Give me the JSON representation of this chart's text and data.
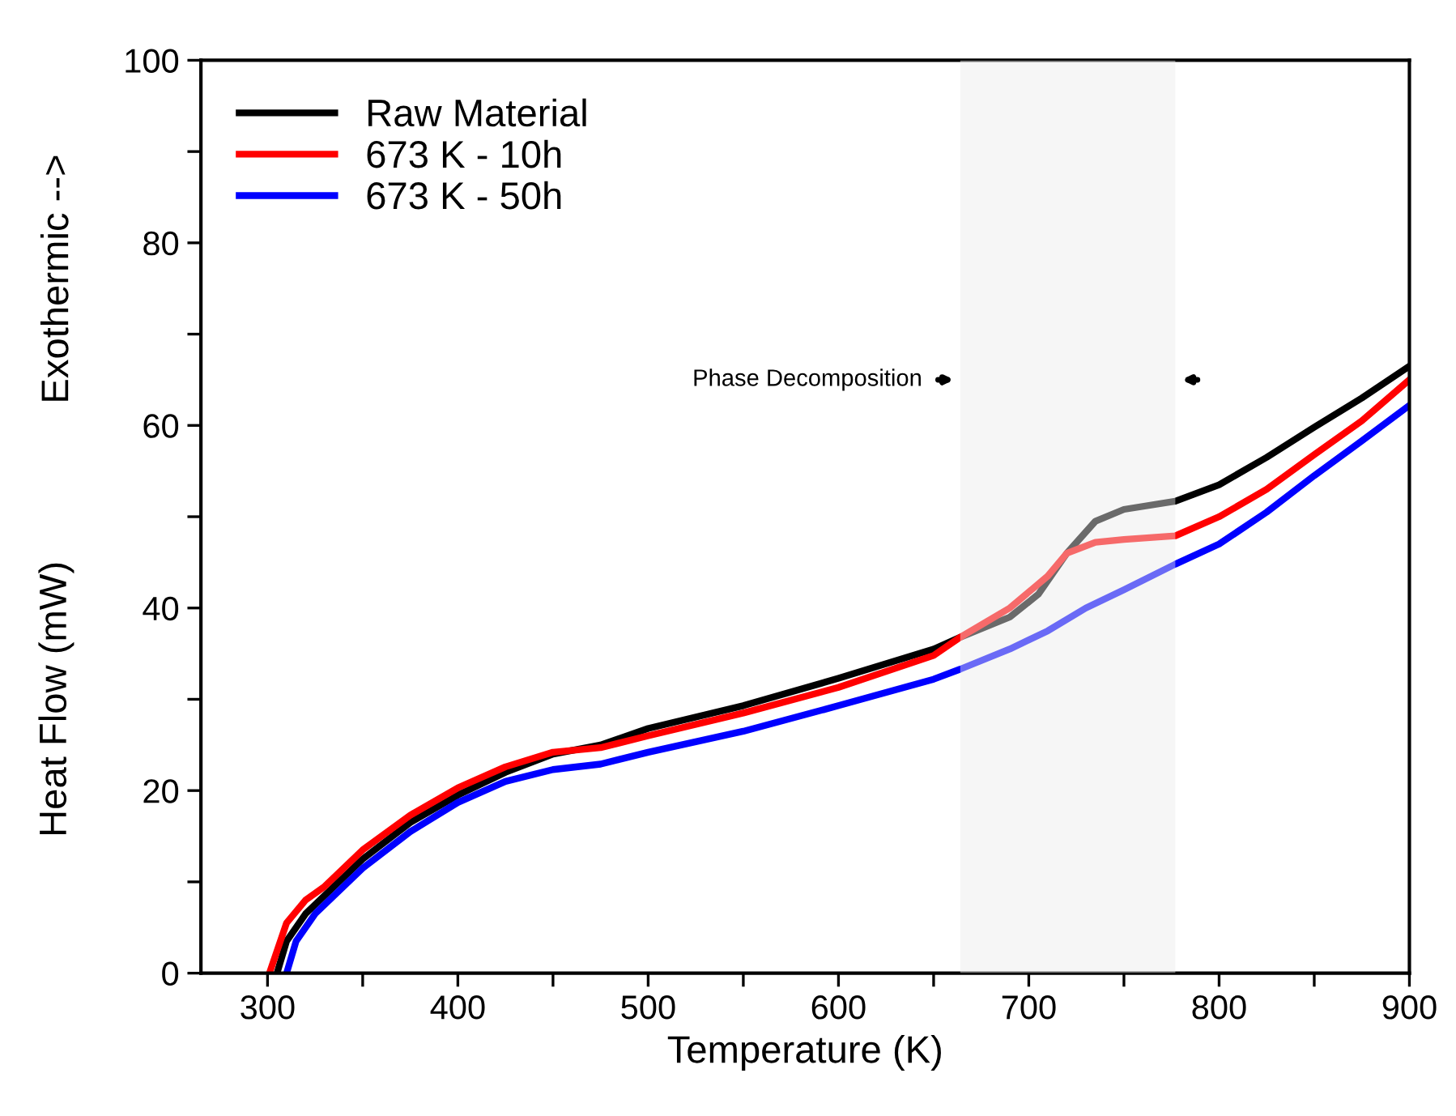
{
  "chart_data": {
    "type": "line",
    "xlabel": "Temperature (K)",
    "ylabel": "Heat Flow (mW)",
    "annotations": [
      "Exothermic -->"
    ],
    "xlim": [
      265,
      900
    ],
    "ylim": [
      0,
      100
    ],
    "xticks": [
      300,
      {
        "value": 350,
        "label": null
      },
      400,
      {
        "value": 450,
        "label": null
      },
      500,
      {
        "value": 550,
        "label": null
      },
      600,
      {
        "value": 650,
        "label": null
      },
      700,
      {
        "value": 750,
        "label": null
      },
      800,
      {
        "value": 850,
        "label": null
      },
      900
    ],
    "yticks": [
      0,
      {
        "value": 10,
        "label": null
      },
      20,
      {
        "value": 30,
        "label": null
      },
      40,
      {
        "value": 50,
        "label": null
      },
      60,
      {
        "value": 70,
        "label": null
      },
      80,
      {
        "value": 90,
        "label": null
      },
      100
    ],
    "bands": [
      {
        "axis": "x",
        "from": 664,
        "to": 777,
        "label": "Phase Decomposition",
        "color": "#ececec"
      }
    ],
    "legend": "top left",
    "grid": false,
    "marker": "none",
    "line_style": "solid",
    "series": [
      {
        "name": "Raw Material",
        "color": "#000000",
        "x": [
          305,
          310,
          320,
          330,
          350,
          375,
          400,
          425,
          450,
          475,
          500,
          550,
          600,
          650,
          664,
          690,
          705,
          720,
          735,
          750,
          777,
          800,
          825,
          850,
          875,
          900
        ],
        "values": [
          0,
          3.5,
          6.5,
          8.5,
          12.5,
          16.5,
          19.5,
          22,
          24,
          25,
          26.8,
          29.3,
          32.3,
          35.5,
          36.8,
          39,
          41.5,
          46,
          49.5,
          50.8,
          51.7,
          53.5,
          56.5,
          59.8,
          63,
          66.5
        ]
      },
      {
        "name": "673 K - 10h",
        "color": "#ff0000",
        "x": [
          301,
          310,
          320,
          330,
          350,
          375,
          400,
          425,
          450,
          475,
          500,
          550,
          600,
          650,
          664,
          690,
          710,
          720,
          735,
          750,
          777,
          800,
          825,
          850,
          875,
          900
        ],
        "values": [
          0,
          5.5,
          8,
          9.5,
          13.5,
          17.3,
          20.3,
          22.6,
          24.2,
          24.7,
          26,
          28.5,
          31.3,
          34.8,
          36.8,
          40,
          43.5,
          46,
          47.2,
          47.5,
          47.9,
          50,
          53,
          56.8,
          60.5,
          65
        ]
      },
      {
        "name": "673 K - 50h",
        "color": "#0000ff",
        "x": [
          310,
          315,
          325,
          350,
          375,
          400,
          425,
          450,
          475,
          500,
          550,
          600,
          650,
          664,
          690,
          710,
          730,
          750,
          777,
          800,
          825,
          850,
          875,
          900
        ],
        "values": [
          0,
          3.5,
          6.5,
          11.5,
          15.5,
          18.7,
          21,
          22.3,
          22.9,
          24.2,
          26.5,
          29.3,
          32.2,
          33.3,
          35.5,
          37.5,
          40,
          42,
          44.8,
          47,
          50.5,
          54.5,
          58.3,
          62.2
        ]
      }
    ]
  }
}
